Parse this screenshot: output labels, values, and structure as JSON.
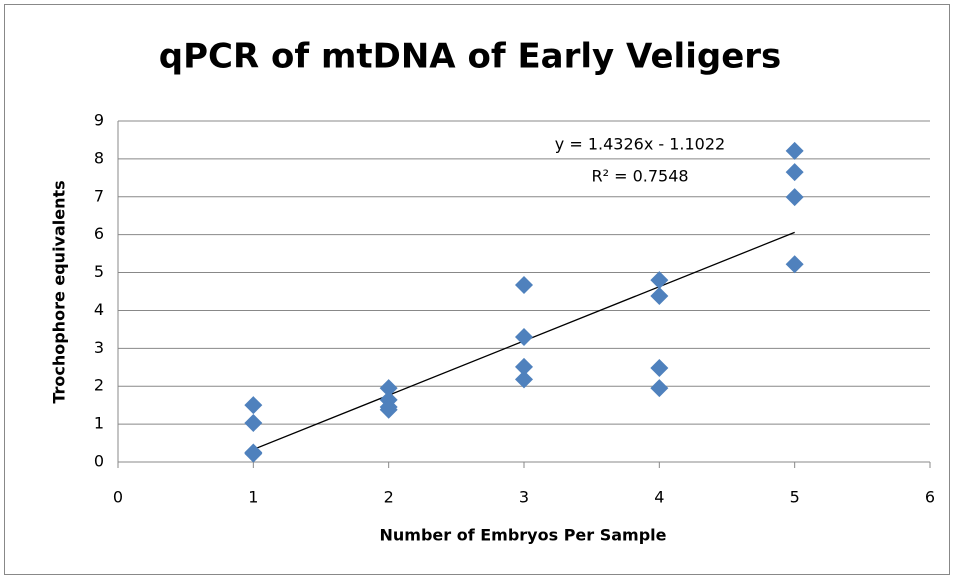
{
  "chart_data": {
    "type": "scatter",
    "title": "qPCR of mtDNA of Early Veligers",
    "xlabel": "Number of Embryos Per Sample",
    "ylabel": "Trochophore equivalents",
    "x": [
      1,
      1,
      1,
      1,
      2,
      2,
      2,
      2,
      3,
      3,
      3,
      3,
      4,
      4,
      4,
      4,
      5,
      5,
      5,
      5
    ],
    "values": [
      1.5,
      1.03,
      0.25,
      0.22,
      1.95,
      1.64,
      1.45,
      1.38,
      4.67,
      3.3,
      2.51,
      2.18,
      4.8,
      4.38,
      2.48,
      1.95,
      8.21,
      7.65,
      6.99,
      5.22
    ],
    "color": "#4f81bd",
    "trendline": {
      "slope": 1.4326,
      "intercept": -1.1022,
      "equation": "y = 1.4326x - 1.1022",
      "r2": "R² = 0.7548"
    },
    "xlim": [
      0,
      6
    ],
    "xticks": [
      0,
      1,
      2,
      3,
      4,
      5,
      6
    ],
    "ylim": [
      0,
      9
    ],
    "yticks": [
      0,
      1,
      2,
      3,
      4,
      5,
      6,
      7,
      8,
      9
    ],
    "grid": true
  }
}
